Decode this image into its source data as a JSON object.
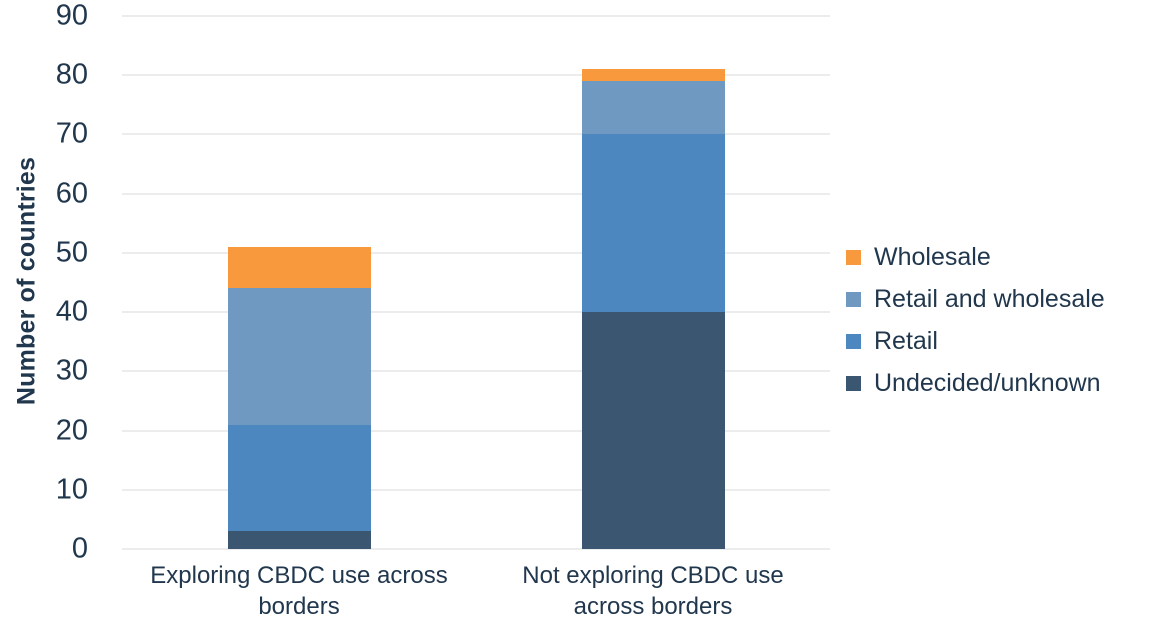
{
  "chart_data": {
    "type": "bar",
    "stacked": true,
    "title": "",
    "xlabel": "",
    "ylabel": "Number of countries",
    "categories": [
      "Exploring CBDC use across borders",
      "Not exploring CBDC use across borders"
    ],
    "series": [
      {
        "name": "Undecided/unknown",
        "values": [
          3,
          40
        ],
        "color": "#3A5670"
      },
      {
        "name": "Retail",
        "values": [
          18,
          30
        ],
        "color": "#4D87BF"
      },
      {
        "name": "Retail and wholesale",
        "values": [
          23,
          9
        ],
        "color": "#7099C2"
      },
      {
        "name": "Wholesale",
        "values": [
          7,
          2
        ],
        "color": "#F9993D"
      }
    ],
    "totals": [
      51,
      81
    ],
    "ylim": [
      0,
      90
    ],
    "yticks": [
      0,
      10,
      20,
      30,
      40,
      50,
      60,
      70,
      80,
      90
    ],
    "grid": true,
    "gridline_color": "#ECECEC",
    "text_color": "#21374D",
    "legend_position": "right",
    "legend_order": [
      "Wholesale",
      "Retail and wholesale",
      "Retail",
      "Undecided/unknown"
    ]
  }
}
